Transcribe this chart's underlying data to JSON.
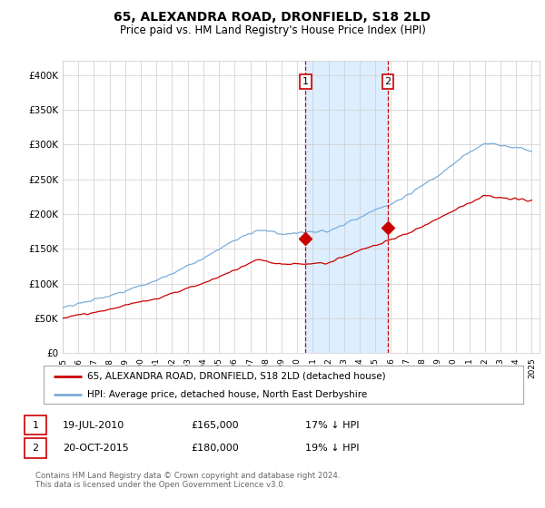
{
  "title": "65, ALEXANDRA ROAD, DRONFIELD, S18 2LD",
  "subtitle": "Price paid vs. HM Land Registry's House Price Index (HPI)",
  "title_fontsize": 10,
  "subtitle_fontsize": 8.5,
  "ylabel_ticks": [
    "£0",
    "£50K",
    "£100K",
    "£150K",
    "£200K",
    "£250K",
    "£300K",
    "£350K",
    "£400K"
  ],
  "ytick_vals": [
    0,
    50000,
    100000,
    150000,
    200000,
    250000,
    300000,
    350000,
    400000
  ],
  "ylim": [
    0,
    420000
  ],
  "xlim_start": 1995.0,
  "xlim_end": 2025.5,
  "sale1_x": 2010.54,
  "sale1_y": 165000,
  "sale1_label": "1",
  "sale2_x": 2015.79,
  "sale2_y": 180000,
  "sale2_label": "2",
  "red_line_color": "#cc0000",
  "blue_line_color": "#7aaddb",
  "shade_color": "#ddeeff",
  "marker_box_color": "#cc0000",
  "grid_color": "#cccccc",
  "background_color": "#ffffff",
  "legend_line1": "65, ALEXANDRA ROAD, DRONFIELD, S18 2LD (detached house)",
  "legend_line2": "HPI: Average price, detached house, North East Derbyshire",
  "table_row1": [
    "1",
    "19-JUL-2010",
    "£165,000",
    "17% ↓ HPI"
  ],
  "table_row2": [
    "2",
    "20-OCT-2015",
    "£180,000",
    "19% ↓ HPI"
  ],
  "footnote": "Contains HM Land Registry data © Crown copyright and database right 2024.\nThis data is licensed under the Open Government Licence v3.0."
}
